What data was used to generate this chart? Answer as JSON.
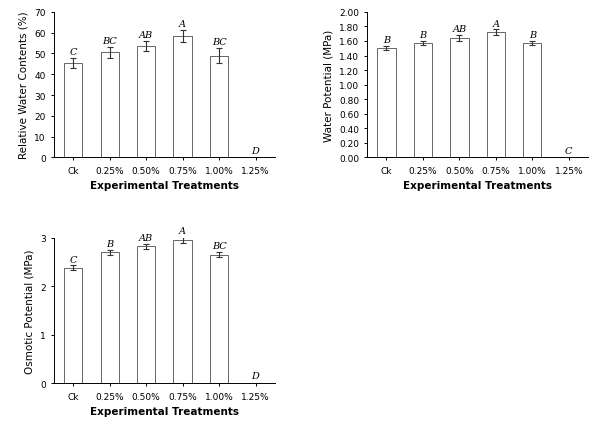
{
  "categories": [
    "Ck",
    "0.25%",
    "0.50%",
    "0.75%",
    "1.00%",
    "1.25%"
  ],
  "rwc": {
    "values": [
      45.5,
      50.5,
      53.5,
      58.5,
      49.0,
      0
    ],
    "errors": [
      2.5,
      2.5,
      2.5,
      3.0,
      3.5,
      0
    ],
    "labels": [
      "C",
      "BC",
      "AB",
      "A",
      "BC",
      "D"
    ],
    "ylabel": "Relative Water Contents (%)",
    "ylim": [
      0,
      70
    ],
    "yticks": [
      0,
      10,
      20,
      30,
      40,
      50,
      60,
      70
    ]
  },
  "wp": {
    "values": [
      1.5,
      1.57,
      1.64,
      1.72,
      1.57,
      0
    ],
    "errors": [
      0.03,
      0.03,
      0.04,
      0.04,
      0.03,
      0
    ],
    "labels": [
      "B",
      "B",
      "AB",
      "A",
      "B",
      "C"
    ],
    "ylabel": "Water Potential (MPa)",
    "ylim": [
      0,
      2.0
    ],
    "yticks": [
      0.0,
      0.2,
      0.4,
      0.6,
      0.8,
      1.0,
      1.2,
      1.4,
      1.6,
      1.8,
      2.0
    ]
  },
  "op": {
    "values": [
      2.38,
      2.7,
      2.82,
      2.95,
      2.65,
      0
    ],
    "errors": [
      0.05,
      0.05,
      0.05,
      0.06,
      0.05,
      0
    ],
    "labels": [
      "C",
      "B",
      "AB",
      "A",
      "BC",
      "D"
    ],
    "ylabel": "Osmotic Potential (MPa)",
    "ylim": [
      0,
      3
    ],
    "yticks": [
      0,
      1,
      2,
      3
    ]
  },
  "xlabel": "Experimental Treatments",
  "bar_color": "#ffffff",
  "bar_edgecolor": "#666666",
  "error_color": "#333333",
  "label_fontsize": 7,
  "tick_fontsize": 6.5,
  "axis_label_fontsize": 7.5,
  "xlabel_fontsize": 7.5,
  "bar_width": 0.5
}
